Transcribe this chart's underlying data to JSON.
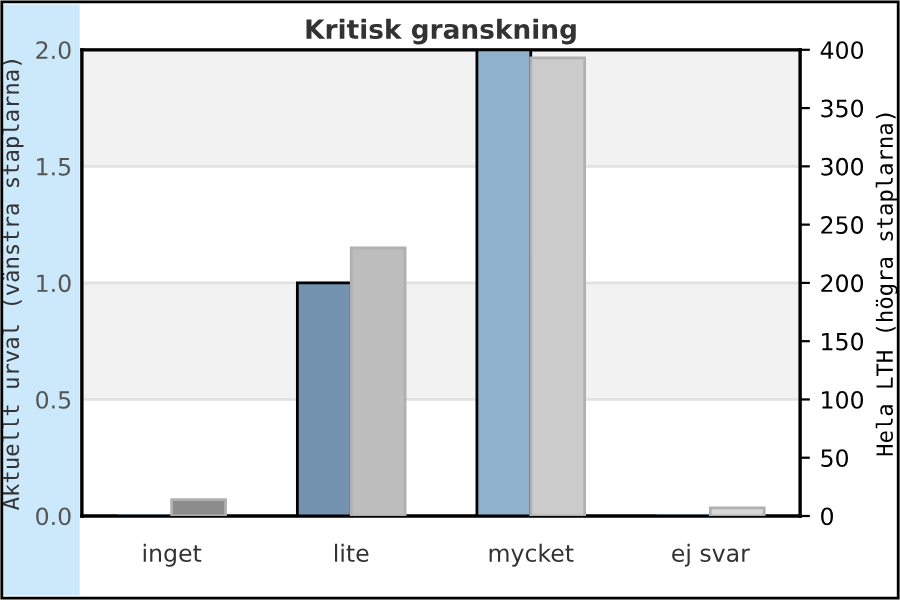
{
  "chart_data": {
    "type": "bar",
    "title": "Kritisk granskning",
    "ylabel": "Aktuellt urval (vänstra staplarna)",
    "y2label": "Hela LTH (högra staplarna)",
    "categories": [
      "inget",
      "lite",
      "mycket",
      "ej svar"
    ],
    "series": [
      {
        "colors": [
          "#7393b0",
          "#7393b0",
          "#90b1cc",
          "#7393b0"
        ],
        "values": [
          0,
          1.0,
          2.0,
          0
        ]
      },
      {
        "colors": [
          "#8c8c8c",
          "#bdbdbd",
          "#cbcbcb",
          "#d9d9d9"
        ],
        "values": [
          14,
          230,
          393,
          7
        ],
        "axis": "y2"
      }
    ],
    "ylim": [
      0,
      2.0
    ],
    "yticks": [
      {
        "value": 0,
        "label": "0.0"
      },
      {
        "value": 0.5,
        "label": "0.5"
      },
      {
        "value": 1.0,
        "label": "1.0"
      },
      {
        "value": 1.5,
        "label": "1.5"
      },
      {
        "value": 2.0,
        "label": "2.0"
      }
    ],
    "y2lim": [
      0,
      400
    ],
    "y2ticks": [
      0,
      50,
      100,
      150,
      200,
      250,
      300,
      350,
      400
    ],
    "bands": [
      {
        "axis": "y",
        "from": 0.5,
        "to": 1.0,
        "color": "#f2f2f2"
      },
      {
        "axis": "y",
        "from": 1.5,
        "to": 2.0,
        "color": "#f2f2f2"
      }
    ],
    "grid": "y",
    "legend": false
  }
}
